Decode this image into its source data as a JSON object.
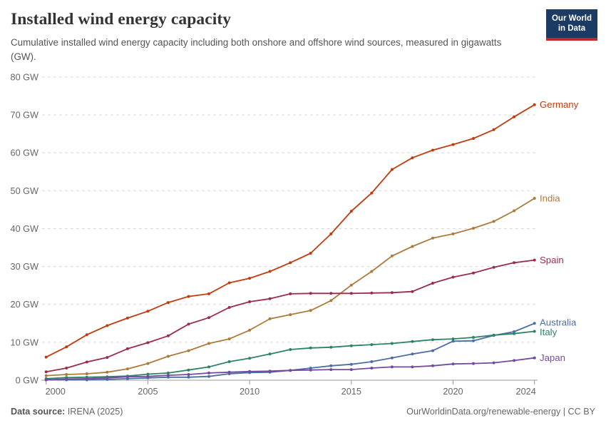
{
  "header": {
    "title": "Installed wind energy capacity",
    "subtitle": "Cumulative installed wind energy capacity including both onshore and offshore wind sources, measured in gigawatts (GW).",
    "logo": {
      "line1": "Our World",
      "line2": "in Data",
      "bg": "#1B3A64",
      "stripe": "#C5262C"
    }
  },
  "footer": {
    "source_label": "Data source:",
    "source_value": " IRENA (2025)",
    "right_text": "OurWorldinData.org/renewable-energy | CC BY"
  },
  "chart_data": {
    "type": "line",
    "title": "Installed wind energy capacity",
    "unit": "GW",
    "grid": "horizontal-dashed",
    "legend_position": "right-end-labels",
    "xlim": [
      2000,
      2024
    ],
    "ylim": [
      0,
      80
    ],
    "xticks": [
      2000,
      2005,
      2010,
      2015,
      2020,
      2024
    ],
    "yticks": [
      0,
      10,
      20,
      30,
      40,
      50,
      60,
      70,
      80
    ],
    "ytick_suffix": " GW",
    "x": [
      2000,
      2001,
      2002,
      2003,
      2004,
      2005,
      2006,
      2007,
      2008,
      2009,
      2010,
      2011,
      2012,
      2013,
      2014,
      2015,
      2016,
      2017,
      2018,
      2019,
      2020,
      2021,
      2022,
      2023,
      2024
    ],
    "series": [
      {
        "name": "Germany",
        "color": "#C23B0D",
        "values": [
          6.1,
          8.8,
          12.0,
          14.4,
          16.4,
          18.2,
          20.5,
          22.1,
          22.8,
          25.7,
          26.9,
          28.7,
          31.0,
          33.5,
          38.6,
          44.6,
          49.4,
          55.6,
          58.7,
          60.7,
          62.2,
          63.8,
          66.1,
          69.5,
          72.7
        ]
      },
      {
        "name": "India",
        "color": "#AC7B3C",
        "values": [
          1.2,
          1.5,
          1.7,
          2.1,
          3.0,
          4.4,
          6.3,
          7.8,
          9.7,
          10.9,
          13.2,
          16.2,
          17.3,
          18.4,
          21.0,
          25.1,
          28.7,
          32.8,
          35.3,
          37.5,
          38.6,
          40.1,
          41.9,
          44.7,
          48.0
        ]
      },
      {
        "name": "Spain",
        "color": "#9A2C4C",
        "values": [
          2.2,
          3.2,
          4.8,
          6.0,
          8.3,
          9.9,
          11.7,
          14.8,
          16.5,
          19.2,
          20.7,
          21.5,
          22.8,
          22.9,
          22.9,
          22.9,
          23.0,
          23.1,
          23.4,
          25.6,
          27.2,
          28.3,
          29.8,
          31.0,
          31.7
        ]
      },
      {
        "name": "Australia",
        "color": "#4C6EA4",
        "values": [
          0.1,
          0.1,
          0.1,
          0.2,
          0.4,
          0.6,
          0.8,
          0.8,
          1.0,
          1.7,
          2.0,
          2.1,
          2.6,
          3.2,
          3.8,
          4.2,
          4.9,
          5.9,
          6.9,
          7.8,
          10.3,
          10.4,
          11.8,
          12.8,
          15.0
        ]
      },
      {
        "name": "Italy",
        "color": "#2C8465",
        "values": [
          0.4,
          0.7,
          0.8,
          0.9,
          1.1,
          1.6,
          1.9,
          2.7,
          3.5,
          4.9,
          5.8,
          6.9,
          8.1,
          8.5,
          8.7,
          9.1,
          9.4,
          9.7,
          10.2,
          10.7,
          10.9,
          11.3,
          11.9,
          12.3,
          12.9
        ]
      },
      {
        "name": "Japan",
        "color": "#7449A0",
        "values": [
          0.1,
          0.3,
          0.4,
          0.6,
          0.9,
          1.0,
          1.3,
          1.5,
          1.9,
          2.1,
          2.3,
          2.4,
          2.6,
          2.7,
          2.8,
          2.8,
          3.2,
          3.5,
          3.5,
          3.8,
          4.3,
          4.4,
          4.6,
          5.2,
          5.9
        ]
      }
    ]
  }
}
